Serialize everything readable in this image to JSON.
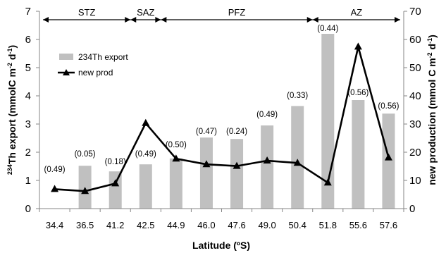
{
  "chart_data": {
    "type": "bar",
    "categories": [
      "34.4",
      "36.5",
      "41.2",
      "42.5",
      "44.9",
      "46.0",
      "47.6",
      "49.0",
      "50.4",
      "51.8",
      "55.6",
      "57.6"
    ],
    "series": [
      {
        "name": "234Th export",
        "type": "bar",
        "axis": "left",
        "values": [
          null,
          1.52,
          1.32,
          1.57,
          1.78,
          2.52,
          2.47,
          2.95,
          3.64,
          6.2,
          3.85,
          3.37
        ],
        "color": "#c0c0c0"
      },
      {
        "name": "new prod",
        "type": "line",
        "marker": "triangle",
        "axis": "right",
        "values": [
          6.9,
          6.2,
          8.9,
          30.3,
          17.7,
          15.7,
          15.1,
          17.0,
          16.2,
          9.2,
          57.4,
          18.1
        ],
        "color": "#000000"
      }
    ],
    "data_labels": [
      "(0.49)",
      "(0.05)",
      "(0.18)",
      "(0.49)",
      "(0.50)",
      "(0.47)",
      "(0.24)",
      "(0.49)",
      "(0.33)",
      "(0.44)",
      "(0.56)",
      "(0.56)"
    ],
    "zones": [
      {
        "label": "STZ",
        "from": "34.4",
        "to": "41.2"
      },
      {
        "label": "SAZ",
        "from": "41.2",
        "to": "42.5"
      },
      {
        "label": "PFZ",
        "from": "42.5",
        "to": "50.4"
      },
      {
        "label": "AZ",
        "from": "50.4",
        "to": "57.6"
      }
    ],
    "xlabel": "Latitude (ºS)",
    "ylabel": {
      "sup": "234",
      "main": "Th export (mmolC m",
      "sup2": "-2",
      "mid": " d",
      "sup3": "-1",
      "end": ")"
    },
    "y2label": {
      "main": "new production (mmol C m",
      "sup": "-2",
      "mid": " d",
      "sup2": "-1",
      "end": ")"
    },
    "ylim": [
      0,
      7
    ],
    "y2lim": [
      0,
      70
    ],
    "yticks": [
      "0",
      "1",
      "2",
      "3",
      "4",
      "5",
      "6",
      "7"
    ],
    "y2ticks": [
      "0",
      "10",
      "20",
      "30",
      "40",
      "50",
      "60",
      "70"
    ],
    "legend_position": "upper-left",
    "grid": false
  }
}
